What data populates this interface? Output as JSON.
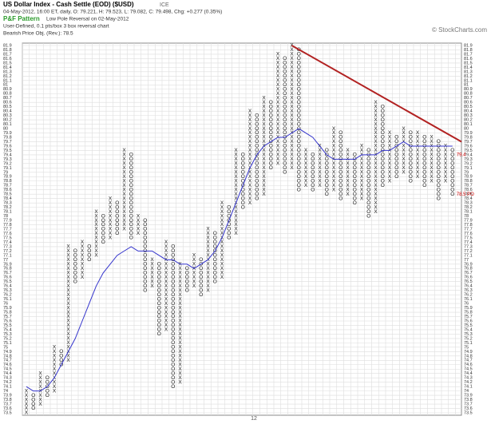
{
  "header": {
    "title": "US Dollar Index - Cash Settle (EOD) ($USD)",
    "exchange": "ICE",
    "quote": "04-May-2012, 16:00 ET, daily, O: 79.221, H: 79.523, L: 79.082, C: 79.498, Chg: +0.277 (0.35%)",
    "pattern_label": "P&F Pattern",
    "pattern": "Low Pole Reversal on 02-May-2012",
    "settings": "User-Defined, 0.1 pts/box 3 box reversal chart",
    "objective": "Bearish Price Obj. (Rev.): 78.5",
    "credit": "© StockCharts.com"
  },
  "chart_data": {
    "type": "pointfigure",
    "box": 0.1,
    "ylim": [
      73.5,
      81.9
    ],
    "yticks": [
      73.5,
      73.6,
      73.7,
      73.8,
      73.9,
      74,
      74.1,
      74.2,
      74.3,
      74.4,
      74.5,
      74.6,
      74.7,
      74.8,
      74.9,
      75,
      75.1,
      75.2,
      75.3,
      75.4,
      75.5,
      75.6,
      75.7,
      75.8,
      75.9,
      76,
      76.1,
      76.2,
      76.3,
      76.4,
      76.5,
      76.6,
      76.7,
      76.8,
      76.9,
      77,
      77.1,
      77.2,
      77.3,
      77.4,
      77.5,
      77.6,
      77.7,
      77.8,
      77.9,
      78,
      78.1,
      78.2,
      78.3,
      78.4,
      78.5,
      78.6,
      78.7,
      78.8,
      78.9,
      79,
      79.1,
      79.2,
      79.3,
      79.4,
      79.5,
      79.6,
      79.7,
      79.8,
      79.9,
      80,
      80.1,
      80.2,
      80.3,
      80.4,
      80.5,
      80.6,
      80.7,
      80.8,
      80.9,
      81,
      81.1,
      81.2,
      81.3,
      81.4,
      81.5,
      81.6,
      81.7,
      81.8,
      81.9
    ],
    "columns": [
      {
        "mark": "X",
        "low": 73.5,
        "high": 74.0
      },
      {
        "mark": "O",
        "low": 73.6,
        "high": 73.9
      },
      {
        "mark": "X",
        "low": 73.7,
        "high": 74.4
      },
      {
        "mark": "O",
        "low": 73.9,
        "high": 74.3
      },
      {
        "mark": "X",
        "low": 74.0,
        "high": 75.0
      },
      {
        "mark": "O",
        "low": 74.6,
        "high": 74.9
      },
      {
        "mark": "X",
        "low": 74.7,
        "high": 77.3
      },
      {
        "mark": "O",
        "low": 76.5,
        "high": 77.2
      },
      {
        "mark": "X",
        "low": 76.6,
        "high": 77.4
      },
      {
        "mark": "O",
        "low": 77.0,
        "high": 77.3
      },
      {
        "mark": "X",
        "low": 77.1,
        "high": 78.1
      },
      {
        "mark": "O",
        "low": 77.4,
        "high": 78.0
      },
      {
        "mark": "X",
        "low": 77.5,
        "high": 78.4
      },
      {
        "mark": "O",
        "low": 77.6,
        "high": 78.3
      },
      {
        "mark": "X",
        "low": 77.7,
        "high": 79.5
      },
      {
        "mark": "O",
        "low": 77.5,
        "high": 79.4
      },
      {
        "mark": "X",
        "low": 77.6,
        "high": 78.0
      },
      {
        "mark": "O",
        "low": 76.3,
        "high": 77.9
      },
      {
        "mark": "X",
        "low": 76.4,
        "high": 77.0
      },
      {
        "mark": "O",
        "low": 75.3,
        "high": 76.9
      },
      {
        "mark": "X",
        "low": 75.4,
        "high": 77.4
      },
      {
        "mark": "O",
        "low": 74.1,
        "high": 77.3
      },
      {
        "mark": "X",
        "low": 74.2,
        "high": 76.9
      },
      {
        "mark": "O",
        "low": 76.3,
        "high": 76.8
      },
      {
        "mark": "X",
        "low": 76.4,
        "high": 77.1
      },
      {
        "mark": "O",
        "low": 76.2,
        "high": 77.0
      },
      {
        "mark": "X",
        "low": 76.3,
        "high": 77.7
      },
      {
        "mark": "O",
        "low": 76.5,
        "high": 77.6
      },
      {
        "mark": "X",
        "low": 76.6,
        "high": 78.3
      },
      {
        "mark": "O",
        "low": 77.5,
        "high": 78.2
      },
      {
        "mark": "X",
        "low": 77.6,
        "high": 79.5
      },
      {
        "mark": "O",
        "low": 78.2,
        "high": 79.4
      },
      {
        "mark": "X",
        "low": 78.3,
        "high": 80.4
      },
      {
        "mark": "O",
        "low": 78.4,
        "high": 80.3
      },
      {
        "mark": "X",
        "low": 78.5,
        "high": 80.7
      },
      {
        "mark": "O",
        "low": 79.1,
        "high": 80.6
      },
      {
        "mark": "X",
        "low": 79.2,
        "high": 81.7
      },
      {
        "mark": "O",
        "low": 79.0,
        "high": 81.6
      },
      {
        "mark": "X",
        "low": 79.1,
        "high": 81.9
      },
      {
        "mark": "O",
        "low": 78.6,
        "high": 81.8
      },
      {
        "mark": "X",
        "low": 78.7,
        "high": 79.5
      },
      {
        "mark": "O",
        "low": 78.6,
        "high": 79.4
      },
      {
        "mark": "X",
        "low": 78.7,
        "high": 79.6
      },
      {
        "mark": "O",
        "low": 78.5,
        "high": 79.5
      },
      {
        "mark": "X",
        "low": 78.6,
        "high": 80.0
      },
      {
        "mark": "O",
        "low": 78.4,
        "high": 79.9
      },
      {
        "mark": "X",
        "low": 78.5,
        "high": 79.5
      },
      {
        "mark": "O",
        "low": 78.3,
        "high": 79.4
      },
      {
        "mark": "X",
        "low": 78.4,
        "high": 79.6
      },
      {
        "mark": "O",
        "low": 78.0,
        "high": 79.5
      },
      {
        "mark": "X",
        "low": 78.1,
        "high": 80.6
      },
      {
        "mark": "O",
        "low": 78.7,
        "high": 80.5
      },
      {
        "mark": "X",
        "low": 78.8,
        "high": 79.9
      },
      {
        "mark": "O",
        "low": 78.9,
        "high": 79.8
      },
      {
        "mark": "X",
        "low": 79.0,
        "high": 80.0
      },
      {
        "mark": "O",
        "low": 78.8,
        "high": 79.9
      },
      {
        "mark": "X",
        "low": 78.9,
        "high": 79.9
      },
      {
        "mark": "O",
        "low": 78.7,
        "high": 79.8
      },
      {
        "mark": "X",
        "low": 78.8,
        "high": 79.8
      },
      {
        "mark": "O",
        "low": 78.4,
        "high": 79.7
      },
      {
        "mark": "X",
        "low": 78.8,
        "high": 79.6
      },
      {
        "mark": "O",
        "low": 78.5,
        "high": 79.5
      }
    ],
    "moving_average": [
      74.1,
      74.0,
      74.0,
      74.1,
      74.3,
      74.6,
      74.9,
      75.2,
      75.6,
      76.0,
      76.4,
      76.7,
      76.9,
      77.1,
      77.2,
      77.3,
      77.2,
      77.2,
      77.2,
      77.1,
      77.0,
      77.0,
      76.9,
      76.9,
      76.8,
      76.9,
      77.0,
      77.2,
      77.5,
      77.9,
      78.3,
      78.7,
      79.1,
      79.4,
      79.6,
      79.7,
      79.8,
      79.8,
      79.9,
      80.0,
      79.9,
      79.8,
      79.6,
      79.4,
      79.3,
      79.3,
      79.3,
      79.3,
      79.4,
      79.4,
      79.4,
      79.5,
      79.5,
      79.6,
      79.7,
      79.6,
      79.6,
      79.6,
      79.6,
      79.6,
      79.6,
      79.6
    ],
    "trendline": [
      81.9,
      79.7
    ],
    "annotations": [
      {
        "text": "79.4",
        "value": 79.4
      },
      {
        "text": "78.5 PO",
        "value": 78.5
      }
    ],
    "x_label": "12"
  }
}
